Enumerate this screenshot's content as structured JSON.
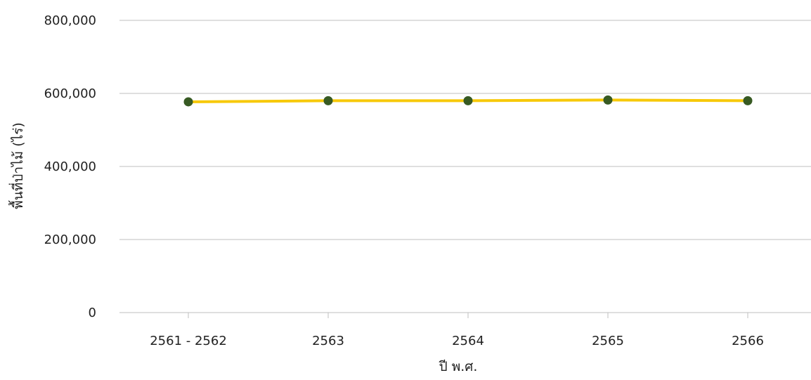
{
  "chart_data": {
    "type": "line",
    "title": "",
    "xlabel": "ปี พ.ศ.",
    "ylabel": "พื้นที่ป่าไม้ (ไร่)",
    "categories": [
      "2561 - 2562",
      "2563",
      "2564",
      "2565",
      "2566"
    ],
    "series": [
      {
        "values": [
          577000,
          580000,
          580000,
          582000,
          580000
        ]
      }
    ],
    "ylim": [
      0,
      800000
    ],
    "yticks": [
      0,
      200000,
      400000,
      600000,
      800000
    ],
    "ytick_labels": [
      "0",
      "200,000",
      "400,000",
      "600,000",
      "800,000"
    ],
    "grid": true,
    "legend": "none",
    "colors": {
      "line": "#f7c90a",
      "marker": "#375a23",
      "grid": "#bfbfbf",
      "text": "#222222"
    }
  }
}
